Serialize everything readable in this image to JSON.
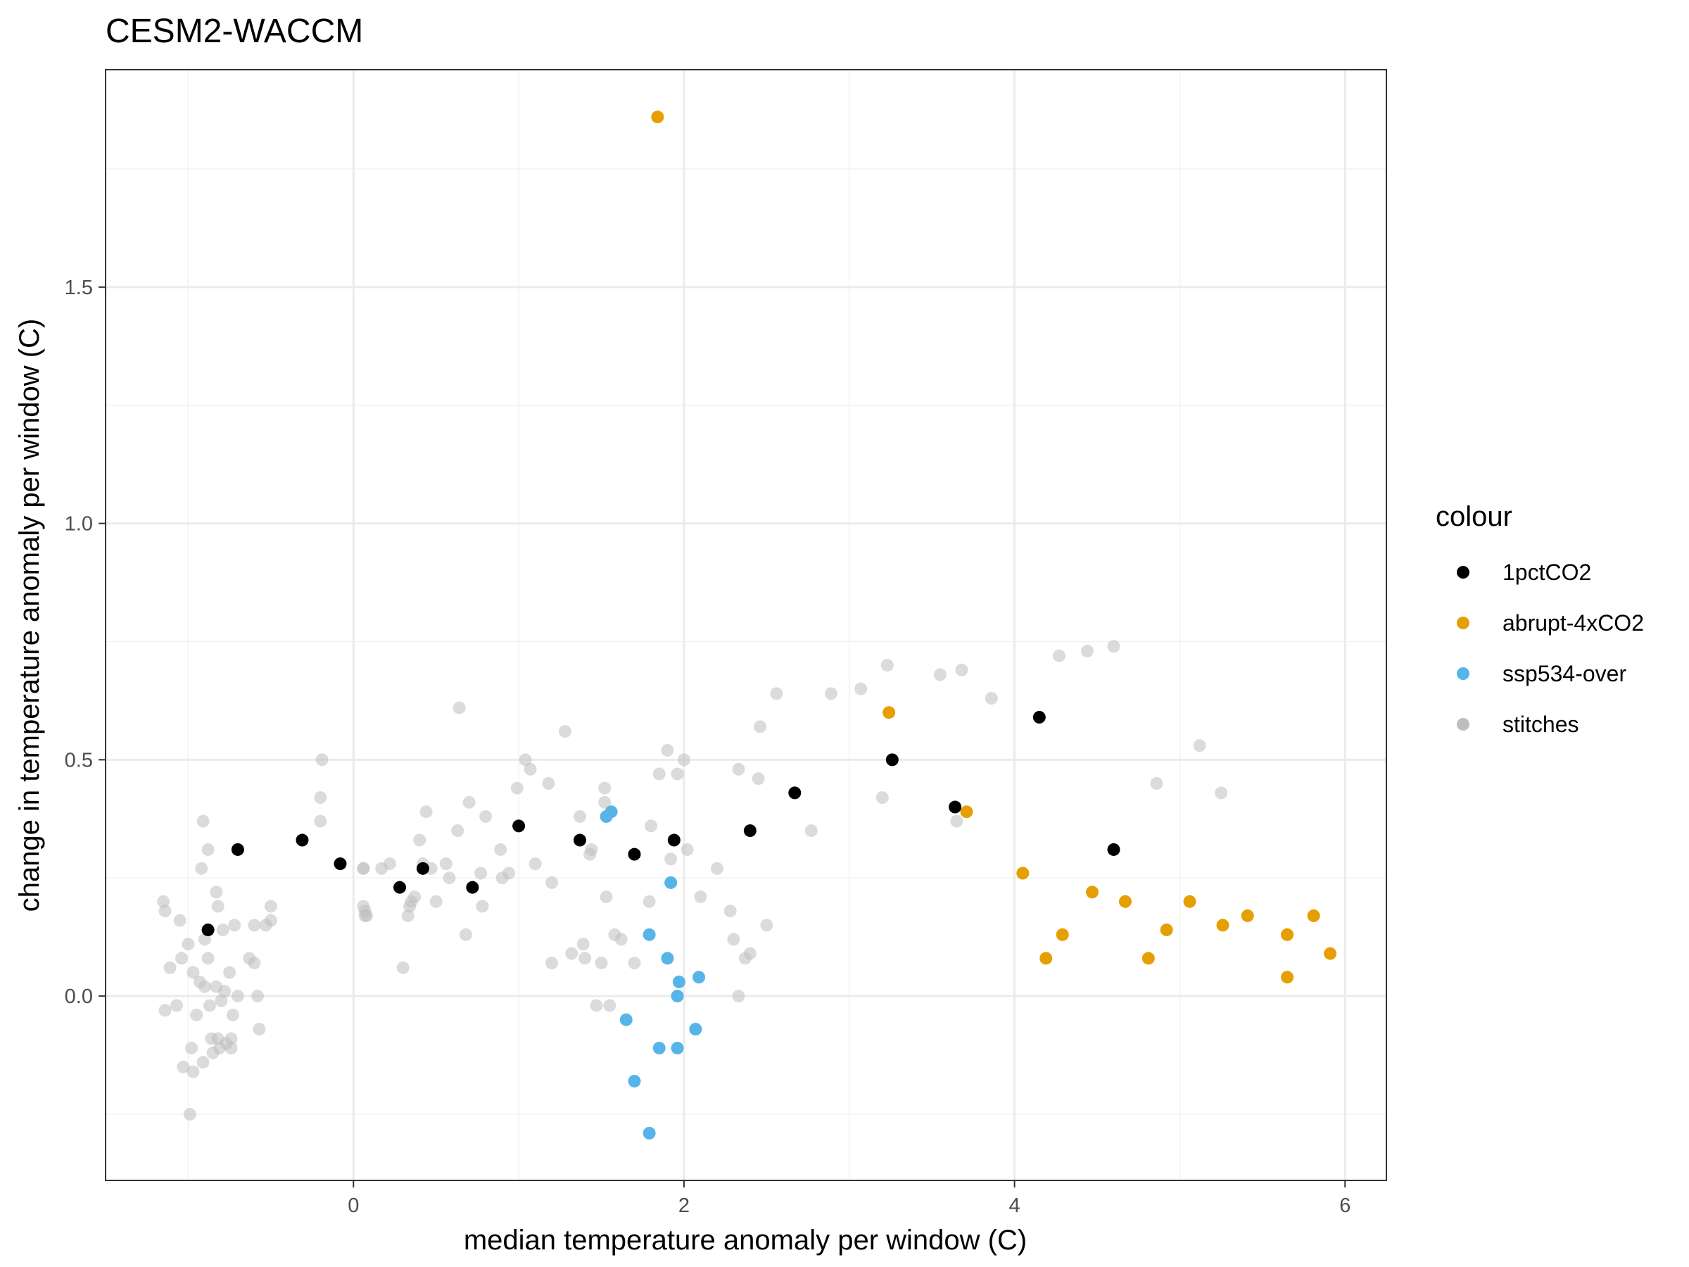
{
  "chart_data": {
    "type": "scatter",
    "title": "CESM2-WACCM",
    "xlabel": "median temperature anomaly per window (C)",
    "ylabel": "change in temperature anomaly per window (C)",
    "xlim": [
      -1.5,
      6.25
    ],
    "ylim": [
      -0.39,
      1.96
    ],
    "x_ticks": [
      0,
      2,
      4,
      6
    ],
    "y_ticks": [
      0.0,
      0.5,
      1.0,
      1.5
    ],
    "x_tick_labels": [
      "0",
      "2",
      "4",
      "6"
    ],
    "y_tick_labels": [
      "0.0",
      "0.5",
      "1.0",
      "1.5"
    ],
    "grid": true,
    "legend": {
      "title": "colour",
      "position": "right",
      "entries": [
        {
          "label": "1pctCO2",
          "color": "#000000"
        },
        {
          "label": "abrupt-4xCO2",
          "color": "#E69F00"
        },
        {
          "label": "ssp534-over",
          "color": "#56B4E9"
        },
        {
          "label": "stitches",
          "color": "#BEBEBE"
        }
      ]
    },
    "series": [
      {
        "name": "stitches",
        "color": "#BEBEBE",
        "opacity": 0.55,
        "points": [
          [
            -1.15,
            0.2
          ],
          [
            -1.14,
            0.18
          ],
          [
            -1.14,
            -0.03
          ],
          [
            -1.11,
            0.06
          ],
          [
            -1.07,
            -0.02
          ],
          [
            -1.05,
            0.16
          ],
          [
            -1.04,
            0.08
          ],
          [
            -1.03,
            -0.15
          ],
          [
            -1.0,
            0.11
          ],
          [
            -0.99,
            -0.25
          ],
          [
            -0.98,
            -0.11
          ],
          [
            -0.97,
            0.05
          ],
          [
            -0.97,
            -0.16
          ],
          [
            -0.95,
            -0.04
          ],
          [
            -0.93,
            0.03
          ],
          [
            -0.92,
            0.27
          ],
          [
            -0.91,
            0.37
          ],
          [
            -0.91,
            -0.14
          ],
          [
            -0.9,
            0.12
          ],
          [
            -0.9,
            0.02
          ],
          [
            -0.88,
            0.31
          ],
          [
            -0.88,
            0.08
          ],
          [
            -0.87,
            -0.02
          ],
          [
            -0.86,
            -0.09
          ],
          [
            -0.85,
            -0.12
          ],
          [
            -0.83,
            0.22
          ],
          [
            -0.83,
            0.02
          ],
          [
            -0.82,
            -0.09
          ],
          [
            -0.82,
            0.19
          ],
          [
            -0.81,
            -0.11
          ],
          [
            -0.8,
            -0.01
          ],
          [
            -0.79,
            0.14
          ],
          [
            -0.78,
            0.01
          ],
          [
            -0.77,
            -0.1
          ],
          [
            -0.75,
            0.05
          ],
          [
            -0.74,
            -0.09
          ],
          [
            -0.74,
            -0.11
          ],
          [
            -0.73,
            -0.04
          ],
          [
            -0.72,
            0.15
          ],
          [
            -0.7,
            0.0
          ],
          [
            -0.63,
            0.08
          ],
          [
            -0.6,
            0.15
          ],
          [
            -0.6,
            0.07
          ],
          [
            -0.58,
            0.0
          ],
          [
            -0.57,
            -0.07
          ],
          [
            -0.53,
            0.15
          ],
          [
            -0.5,
            0.16
          ],
          [
            -0.5,
            0.19
          ],
          [
            -0.2,
            0.37
          ],
          [
            -0.2,
            0.42
          ],
          [
            -0.19,
            0.5
          ],
          [
            0.06,
            0.27
          ],
          [
            0.06,
            0.27
          ],
          [
            0.06,
            0.19
          ],
          [
            0.07,
            0.18
          ],
          [
            0.07,
            0.17
          ],
          [
            0.08,
            0.17
          ],
          [
            0.17,
            0.27
          ],
          [
            0.22,
            0.28
          ],
          [
            0.3,
            0.06
          ],
          [
            0.33,
            0.17
          ],
          [
            0.34,
            0.19
          ],
          [
            0.35,
            0.2
          ],
          [
            0.37,
            0.21
          ],
          [
            0.4,
            0.33
          ],
          [
            0.42,
            0.28
          ],
          [
            0.44,
            0.39
          ],
          [
            0.47,
            0.27
          ],
          [
            0.5,
            0.2
          ],
          [
            0.56,
            0.28
          ],
          [
            0.58,
            0.25
          ],
          [
            0.63,
            0.35
          ],
          [
            0.64,
            0.61
          ],
          [
            0.68,
            0.13
          ],
          [
            0.7,
            0.41
          ],
          [
            0.77,
            0.26
          ],
          [
            0.78,
            0.19
          ],
          [
            0.8,
            0.38
          ],
          [
            0.89,
            0.31
          ],
          [
            0.9,
            0.25
          ],
          [
            0.94,
            0.26
          ],
          [
            0.99,
            0.44
          ],
          [
            1.04,
            0.5
          ],
          [
            1.07,
            0.48
          ],
          [
            1.1,
            0.28
          ],
          [
            1.18,
            0.45
          ],
          [
            1.2,
            0.24
          ],
          [
            1.2,
            0.07
          ],
          [
            1.28,
            0.56
          ],
          [
            1.32,
            0.09
          ],
          [
            1.37,
            0.38
          ],
          [
            1.39,
            0.11
          ],
          [
            1.4,
            0.08
          ],
          [
            1.43,
            0.3
          ],
          [
            1.44,
            0.31
          ],
          [
            1.47,
            -0.02
          ],
          [
            1.5,
            0.07
          ],
          [
            1.52,
            0.44
          ],
          [
            1.52,
            0.41
          ],
          [
            1.53,
            0.21
          ],
          [
            1.55,
            -0.02
          ],
          [
            1.58,
            0.13
          ],
          [
            1.62,
            0.12
          ],
          [
            1.7,
            0.07
          ],
          [
            1.79,
            0.2
          ],
          [
            1.8,
            0.36
          ],
          [
            1.85,
            0.47
          ],
          [
            1.9,
            0.52
          ],
          [
            1.92,
            0.29
          ],
          [
            1.96,
            0.47
          ],
          [
            2.0,
            0.5
          ],
          [
            2.02,
            0.31
          ],
          [
            2.1,
            0.21
          ],
          [
            2.2,
            0.27
          ],
          [
            2.28,
            0.18
          ],
          [
            2.3,
            0.12
          ],
          [
            2.33,
            0.48
          ],
          [
            2.33,
            0.0
          ],
          [
            2.37,
            0.08
          ],
          [
            2.4,
            0.09
          ],
          [
            2.45,
            0.46
          ],
          [
            2.46,
            0.57
          ],
          [
            2.5,
            0.15
          ],
          [
            2.56,
            0.64
          ],
          [
            2.77,
            0.35
          ],
          [
            2.89,
            0.64
          ],
          [
            3.07,
            0.65
          ],
          [
            3.2,
            0.42
          ],
          [
            3.23,
            0.7
          ],
          [
            3.55,
            0.68
          ],
          [
            3.65,
            0.37
          ],
          [
            3.68,
            0.69
          ],
          [
            3.86,
            0.63
          ],
          [
            4.27,
            0.72
          ],
          [
            4.44,
            0.73
          ],
          [
            4.6,
            0.74
          ],
          [
            4.86,
            0.45
          ],
          [
            5.12,
            0.53
          ],
          [
            5.25,
            0.43
          ]
        ]
      },
      {
        "name": "1pctCO2",
        "color": "#000000",
        "opacity": 1,
        "points": [
          [
            -0.88,
            0.14
          ],
          [
            -0.7,
            0.31
          ],
          [
            -0.31,
            0.33
          ],
          [
            -0.08,
            0.28
          ],
          [
            0.28,
            0.23
          ],
          [
            0.42,
            0.27
          ],
          [
            0.72,
            0.23
          ],
          [
            1.0,
            0.36
          ],
          [
            1.37,
            0.33
          ],
          [
            1.7,
            0.3
          ],
          [
            1.94,
            0.33
          ],
          [
            2.4,
            0.35
          ],
          [
            2.67,
            0.43
          ],
          [
            3.26,
            0.5
          ],
          [
            3.64,
            0.4
          ],
          [
            4.15,
            0.59
          ],
          [
            4.6,
            0.31
          ]
        ]
      },
      {
        "name": "abrupt-4xCO2",
        "color": "#E69F00",
        "opacity": 1,
        "points": [
          [
            1.84,
            1.86
          ],
          [
            3.24,
            0.6
          ],
          [
            3.71,
            0.39
          ],
          [
            4.05,
            0.26
          ],
          [
            4.19,
            0.08
          ],
          [
            4.29,
            0.13
          ],
          [
            4.47,
            0.22
          ],
          [
            4.67,
            0.2
          ],
          [
            4.81,
            0.08
          ],
          [
            4.92,
            0.14
          ],
          [
            5.06,
            0.2
          ],
          [
            5.26,
            0.15
          ],
          [
            5.41,
            0.17
          ],
          [
            5.65,
            0.13
          ],
          [
            5.65,
            0.04
          ],
          [
            5.81,
            0.17
          ],
          [
            5.91,
            0.09
          ]
        ]
      },
      {
        "name": "ssp534-over",
        "color": "#56B4E9",
        "opacity": 1,
        "points": [
          [
            1.53,
            0.38
          ],
          [
            1.56,
            0.39
          ],
          [
            1.92,
            0.24
          ],
          [
            1.79,
            0.13
          ],
          [
            1.9,
            0.08
          ],
          [
            1.97,
            0.03
          ],
          [
            2.09,
            0.04
          ],
          [
            1.96,
            0.0
          ],
          [
            1.65,
            -0.05
          ],
          [
            2.07,
            -0.07
          ],
          [
            1.85,
            -0.11
          ],
          [
            1.96,
            -0.11
          ],
          [
            1.7,
            -0.18
          ],
          [
            1.79,
            -0.29
          ]
        ]
      }
    ]
  }
}
